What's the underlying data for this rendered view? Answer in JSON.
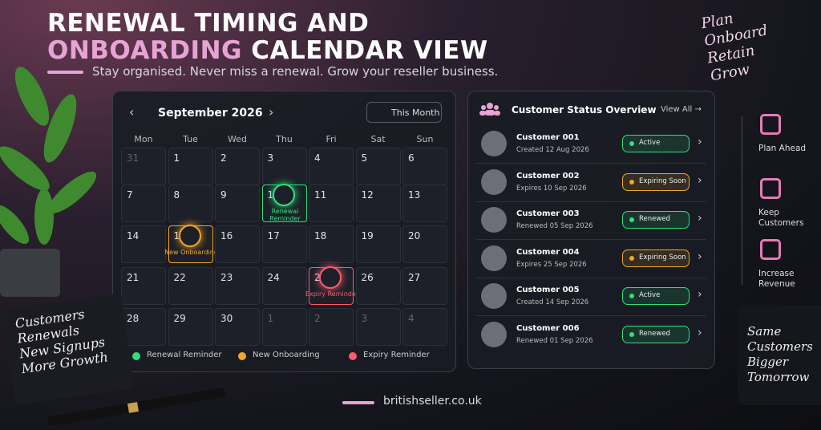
{
  "header": {
    "title_line1": "RENEWAL TIMING AND",
    "title_line2_highlight": "ONBOARDING",
    "title_line2_rest": "CALENDAR VIEW",
    "subtitle": "Stay organised. Never miss a renewal. Grow your reseller business."
  },
  "note_top": [
    "Plan",
    "Onboard",
    "Retain",
    "Grow"
  ],
  "calendar": {
    "month": "September 2026",
    "button": "This Month",
    "weekdays": [
      "Mon",
      "Tue",
      "Wed",
      "Thu",
      "Fri",
      "Sat",
      "Sun"
    ],
    "weeks": [
      [
        {
          "day": "31",
          "muted": true
        },
        {
          "day": "1"
        },
        {
          "day": "2"
        },
        {
          "day": "3"
        },
        {
          "day": "4"
        },
        {
          "day": "5"
        },
        {
          "day": "6"
        }
      ],
      [
        {
          "day": "7"
        },
        {
          "day": "8"
        },
        {
          "day": "9"
        },
        {
          "day": "10",
          "event": "Renewal Reminder",
          "color": "#2ee07a"
        },
        {
          "day": "11"
        },
        {
          "day": "12"
        },
        {
          "day": "13"
        }
      ],
      [
        {
          "day": "14"
        },
        {
          "day": "15",
          "event": "New Onboarding",
          "color": "#f5a623"
        },
        {
          "day": "16"
        },
        {
          "day": "17"
        },
        {
          "day": "18"
        },
        {
          "day": "19"
        },
        {
          "day": "20"
        }
      ],
      [
        {
          "day": "21"
        },
        {
          "day": "22"
        },
        {
          "day": "23"
        },
        {
          "day": "24"
        },
        {
          "day": "25",
          "event": "Expiry Reminder",
          "color": "#ff5a6e"
        },
        {
          "day": "26"
        },
        {
          "day": "27"
        }
      ],
      [
        {
          "day": "28"
        },
        {
          "day": "29"
        },
        {
          "day": "30"
        },
        {
          "day": "1",
          "muted": true
        },
        {
          "day": "2",
          "muted": true
        },
        {
          "day": "3",
          "muted": true
        },
        {
          "day": "4",
          "muted": true
        }
      ]
    ],
    "legend": [
      {
        "label": "Renewal Reminder",
        "color": "#2ee07a"
      },
      {
        "label": "New Onboarding",
        "color": "#f5a623"
      },
      {
        "label": "Expiry Reminder",
        "color": "#ff5a6e"
      }
    ]
  },
  "customers": {
    "title": "Customer Status Overview",
    "link": "View All",
    "rows": [
      {
        "name": "Customer 001",
        "detail": "Created 12 Aug 2026",
        "status": "Active",
        "color": "#2ee07a"
      },
      {
        "name": "Customer 002",
        "detail": "Expires 10 Sep 2026",
        "status": "Expiring Soon",
        "color": "#f5a623"
      },
      {
        "name": "Customer 003",
        "detail": "Renewed 05 Sep 2026",
        "status": "Renewed",
        "color": "#2ee07a"
      },
      {
        "name": "Customer 004",
        "detail": "Expires 25 Sep 2026",
        "status": "Expiring Soon",
        "color": "#f5a623"
      },
      {
        "name": "Customer 005",
        "detail": "Created 14 Sep 2026",
        "status": "Active",
        "color": "#2ee07a"
      },
      {
        "name": "Customer 006",
        "detail": "Renewed 01 Sep 2026",
        "status": "Renewed",
        "color": "#2ee07a"
      }
    ]
  },
  "sidebar": [
    "Plan Ahead",
    "Keep Customers",
    "Increase Revenue"
  ],
  "notebook": [
    "Customers",
    "Renewals",
    "New Signups",
    "More Growth"
  ],
  "mug": [
    "Same",
    "Customers",
    "Bigger",
    "Tomorrow"
  ],
  "footer": "britishseller.co.uk"
}
